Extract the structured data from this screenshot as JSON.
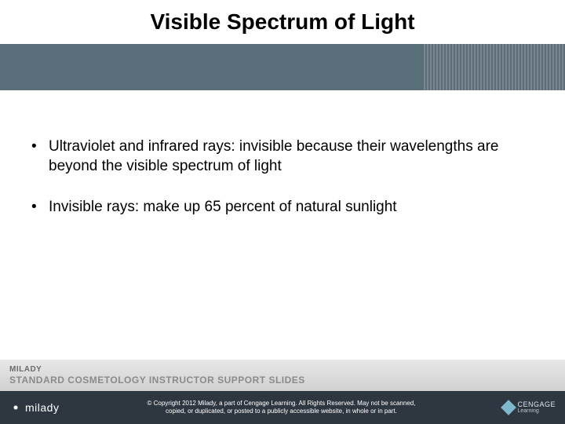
{
  "title": "Visible Spectrum of Light",
  "bullets": [
    "Ultraviolet and infrared rays: invisible because their wavelengths are beyond the visible spectrum of light",
    "Invisible rays: make up 65 percent of natural sunlight"
  ],
  "footer": {
    "brand": "MILADY",
    "subtitle": "STANDARD COSMETOLOGY INSTRUCTOR SUPPORT SLIDES"
  },
  "bottom": {
    "logo_left": "milady",
    "copyright_line1": "© Copyright 2012 Milady, a part of Cengage Learning. All Rights Reserved. May not be scanned,",
    "copyright_line2": "copied, or duplicated, or posted to a publicly accessible website, in whole or in part.",
    "logo_right_l1": "CENGAGE",
    "logo_right_l2": "Learning"
  },
  "colors": {
    "band": "#5a6e7a",
    "bottom_bar": "#2e3740",
    "footer_band": "#d8d8d8"
  }
}
